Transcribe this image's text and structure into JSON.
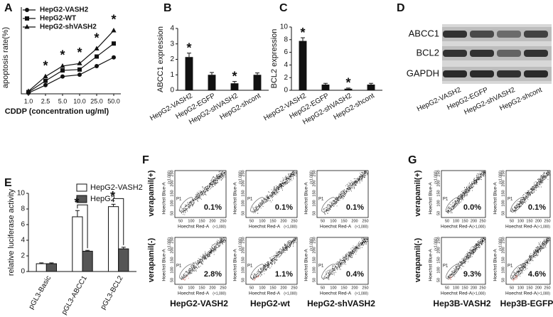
{
  "panel_labels": [
    "A",
    "B",
    "C",
    "D",
    "E",
    "F",
    "G"
  ],
  "chart_data": [
    {
      "type": "line",
      "ylabel": "apoptosis rate(%)",
      "xlabel": "CDDP (concentration ug/ml)",
      "categories": [
        "1.0",
        "2.5",
        "5.0",
        "10.0",
        "25.0",
        "50.0"
      ],
      "ylim": [
        0,
        100
      ],
      "legend": "upper left",
      "series": [
        {
          "name": "HepG2-VASH2",
          "color": "#111111",
          "marker": "circle",
          "values": [
            1,
            10,
            20,
            22,
            32,
            42
          ]
        },
        {
          "name": "HepG2-WT",
          "color": "#111111",
          "marker": "square",
          "values": [
            2,
            15,
            27,
            28,
            43,
            58
          ]
        },
        {
          "name": "HepG2-shVASH2",
          "color": "#111111",
          "marker": "triangle",
          "values": [
            3,
            20,
            32,
            35,
            52,
            73
          ]
        }
      ],
      "annotations": [
        {
          "text": "*",
          "x": "2.5"
        },
        {
          "text": "*",
          "x": "5.0"
        },
        {
          "text": "*",
          "x": "10.0"
        },
        {
          "text": "*",
          "x": "25.0"
        },
        {
          "text": "*",
          "x": "50.0"
        }
      ]
    },
    {
      "type": "bar",
      "ylabel": "ABCC1 expression",
      "color": "#111111",
      "categories": [
        "HepG2-VASH2",
        "HepG2-EGFP",
        "HepG2-shVASH2",
        "HepG2-shcont"
      ],
      "values": [
        2.15,
        1.0,
        0.45,
        1.0
      ],
      "errors": [
        0.25,
        0.15,
        0.12,
        0.12
      ],
      "ylim": [
        0,
        4
      ],
      "yticks": [
        0,
        1,
        2,
        3,
        4
      ],
      "annotations": [
        {
          "text": "*",
          "x": "HepG2-VASH2"
        },
        {
          "text": "*",
          "x": "HepG2-shVASH2"
        }
      ]
    },
    {
      "type": "bar",
      "ylabel": "BCL2 expression",
      "color": "#111111",
      "categories": [
        "HepG2-VASH2",
        "HepG2-EGFP",
        "HepG2-shVASH2",
        "HepG2-shcont"
      ],
      "values": [
        7.8,
        0.9,
        0.25,
        0.9
      ],
      "errors": [
        0.5,
        0.2,
        0.1,
        0.2
      ],
      "ylim": [
        0,
        10
      ],
      "yticks": [
        0,
        2,
        4,
        6,
        8,
        10
      ],
      "annotations": [
        {
          "text": "*",
          "x": "HepG2-VASH2"
        },
        {
          "text": "*",
          "x": "HepG2-shVASH2"
        }
      ]
    },
    {
      "type": "bar",
      "ylabel": "relative luciferase activity",
      "legend": "upper right",
      "categories": [
        "pGL3-Basic",
        "pGL3-ABCC1",
        "pGL3-BCL2"
      ],
      "series": [
        {
          "name": "HepG2-VASH2",
          "color": "#ffffff",
          "values": [
            1.0,
            7.0,
            8.3
          ],
          "errors": [
            0.1,
            0.8,
            0.3
          ]
        },
        {
          "name": "HepG2",
          "color": "#555555",
          "values": [
            1.0,
            2.6,
            2.9
          ],
          "errors": [
            0.1,
            0.1,
            0.2
          ]
        }
      ],
      "ylim": [
        0,
        10
      ],
      "yticks": [
        0,
        2,
        4,
        6,
        8,
        10
      ],
      "annotations": [
        {
          "text": "*",
          "x": "pGL3-ABCC1"
        },
        {
          "text": "*",
          "x": "pGL3-BCL2"
        }
      ]
    }
  ],
  "blot": {
    "rows": [
      "ABCC1",
      "BCL2",
      "GAPDH"
    ],
    "lanes": [
      "HepG2-VASH2",
      "HepG2-EGFP",
      "HepG2-shVASH2",
      "HepG2-shcont"
    ]
  },
  "flow": {
    "x_label": "Hoechst Red-A",
    "y_label": "Hoechst Blue-A",
    "unit": "(×1,000)",
    "ticks": [
      50,
      100,
      150,
      200,
      250
    ],
    "gate": "P1",
    "rows": [
      "verapamil(+)",
      "verapamil(-)"
    ],
    "panels": [
      {
        "columns": [
          "HepG2-VASH2",
          "HepG2-wt",
          "HepG2-shVASH2"
        ],
        "values": [
          [
            "0.1%",
            "0.1%",
            "0.1%"
          ],
          [
            "2.8%",
            "1.1%",
            "0.4%"
          ]
        ]
      },
      {
        "columns": [
          "Hep3B-VASH2",
          "Hep3B-EGFP"
        ],
        "values": [
          [
            "0.0%",
            "0.1%"
          ],
          [
            "9.3%",
            "4.6%"
          ]
        ]
      }
    ]
  }
}
